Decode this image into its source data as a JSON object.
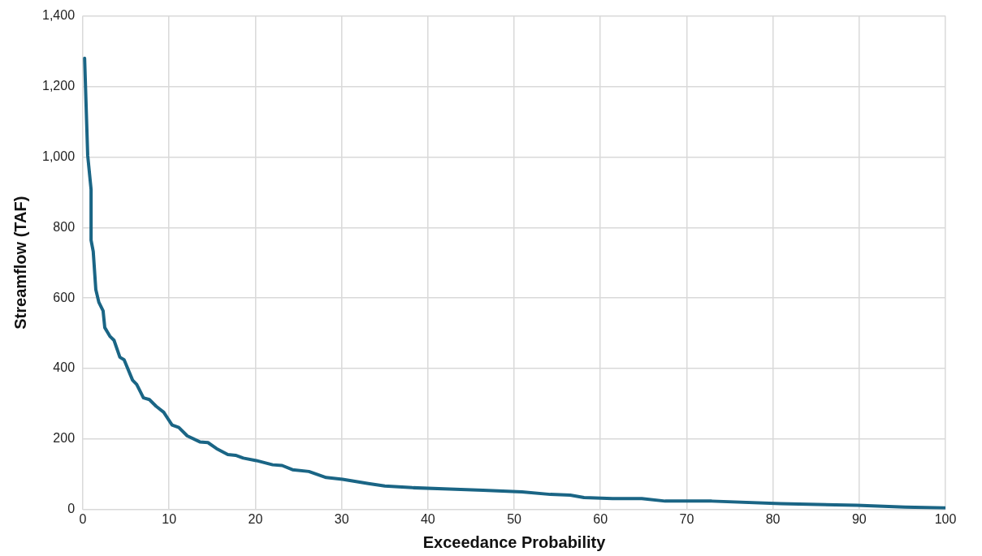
{
  "chart_data": {
    "type": "line",
    "xlabel": "Exceedance Probability",
    "ylabel": "Streamflow (TAF)",
    "series": [
      {
        "color": "#1a6585",
        "x": [
          0.2,
          0.56,
          0.95,
          0.95,
          1.2,
          1.5,
          1.85,
          2.34,
          2.54,
          3.12,
          3.61,
          4.29,
          4.78,
          5.76,
          6.24,
          7.02,
          7.71,
          8.49,
          9.37,
          10.34,
          11.12,
          12.1,
          13.56,
          14.5,
          15.5,
          16.8,
          17.7,
          18.6,
          20.1,
          22.0,
          23.1,
          24.3,
          26.2,
          28.2,
          30.1,
          33.1,
          35.0,
          38.2,
          42.5,
          46.4,
          50.9,
          54.2,
          56.5,
          58.1,
          61.4,
          64.8,
          67.5,
          72.9,
          80.9,
          89.7,
          95.3,
          99.9
        ],
        "values": [
          1280,
          1004,
          908,
          764,
          732,
          624,
          588,
          564,
          516,
          492,
          480,
          432,
          425,
          367,
          355,
          317,
          312,
          293,
          276,
          240,
          233,
          209,
          192,
          190,
          173,
          156,
          154,
          146,
          139,
          127,
          125,
          113,
          108,
          91,
          86,
          74,
          67,
          62,
          58,
          55,
          50,
          43,
          41,
          34,
          31,
          31,
          24,
          24,
          17,
          12,
          7,
          5
        ]
      }
    ],
    "xlim": [
      0,
      100
    ],
    "xticks": [
      0,
      10,
      20,
      30,
      40,
      50,
      60,
      70,
      80,
      90,
      100
    ],
    "ylim": [
      0,
      1400
    ],
    "yticks": [
      0,
      200,
      400,
      600,
      800,
      {
        "value": 1000,
        "label": "1,000"
      },
      {
        "value": 1200,
        "label": "1,200"
      },
      {
        "value": 1400,
        "label": "1,400"
      }
    ],
    "grid": true,
    "legend": false,
    "marker": "none",
    "line_style": "solid"
  }
}
